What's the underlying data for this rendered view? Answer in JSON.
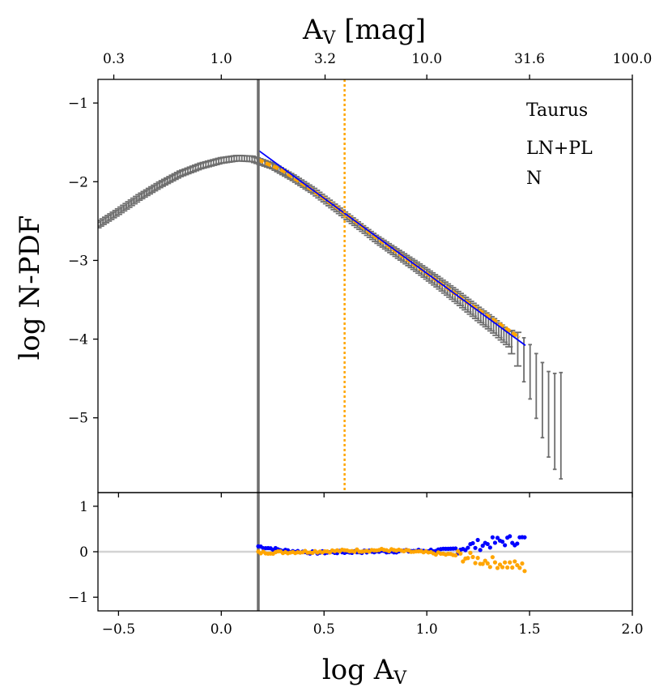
{
  "chart_data": {
    "type": "scatter",
    "title": "",
    "top_axis": {
      "label_main": "A",
      "label_sub": "V",
      "label_suffix": " [mag]",
      "ticks": [
        {
          "log": -0.523,
          "label": "0.3"
        },
        {
          "log": 0.0,
          "label": "1.0"
        },
        {
          "log": 0.505,
          "label": "3.2"
        },
        {
          "log": 1.0,
          "label": "10.0"
        },
        {
          "log": 1.5,
          "label": "31.6"
        },
        {
          "log": 2.0,
          "label": "100.0"
        }
      ]
    },
    "xlabel_main": "log A",
    "xlabel_sub": "V",
    "ylabel": "log N-PDF",
    "xlim": [
      -0.6,
      2.0
    ],
    "ylim_main": [
      -5.95,
      -0.7
    ],
    "ylim_resid": [
      -1.3,
      1.3
    ],
    "x_ticks": [
      {
        "value": -0.5,
        "label": "−0.5"
      },
      {
        "value": 0.0,
        "label": "0.0"
      },
      {
        "value": 0.5,
        "label": "0.5"
      },
      {
        "value": 1.0,
        "label": "1.0"
      },
      {
        "value": 1.5,
        "label": "1.5"
      },
      {
        "value": 2.0,
        "label": "2.0"
      }
    ],
    "y_ticks_main": [
      {
        "value": -1,
        "label": "−1"
      },
      {
        "value": -2,
        "label": "−2"
      },
      {
        "value": -3,
        "label": "−3"
      },
      {
        "value": -4,
        "label": "−4"
      },
      {
        "value": -5,
        "label": "−5"
      }
    ],
    "y_ticks_resid": [
      {
        "value": 1,
        "label": "1"
      },
      {
        "value": 0,
        "label": "0"
      },
      {
        "value": -1,
        "label": "−1"
      }
    ],
    "legend": [
      "Taurus",
      "LN+PL",
      "N"
    ],
    "vertical_lines": [
      {
        "x": 0.18,
        "style": "solid",
        "color": "#6e6e6e"
      },
      {
        "x": 0.6,
        "style": "dotted",
        "color": "#ffa500"
      }
    ],
    "pl_fit": {
      "x": [
        0.18,
        1.48
      ],
      "y": [
        -1.6,
        -4.08
      ],
      "color": "#0000ff"
    },
    "pdf_anchors": [
      [
        -0.6,
        -2.55
      ],
      [
        -0.5,
        -2.38
      ],
      [
        -0.4,
        -2.2
      ],
      [
        -0.3,
        -2.04
      ],
      [
        -0.2,
        -1.9
      ],
      [
        -0.1,
        -1.8
      ],
      [
        0.0,
        -1.73
      ],
      [
        0.08,
        -1.7
      ],
      [
        0.15,
        -1.71
      ],
      [
        0.25,
        -1.8
      ],
      [
        0.35,
        -1.95
      ],
      [
        0.45,
        -2.12
      ],
      [
        0.55,
        -2.32
      ],
      [
        0.65,
        -2.52
      ],
      [
        0.75,
        -2.72
      ],
      [
        0.85,
        -2.9
      ],
      [
        0.95,
        -3.08
      ],
      [
        1.05,
        -3.27
      ],
      [
        1.15,
        -3.47
      ],
      [
        1.25,
        -3.68
      ],
      [
        1.32,
        -3.82
      ],
      [
        1.4,
        -4.0
      ],
      [
        1.45,
        -4.15
      ],
      [
        1.5,
        -4.4
      ],
      [
        1.55,
        -4.7
      ],
      [
        1.6,
        -5.0
      ],
      [
        1.65,
        -5.1
      ]
    ],
    "model_anchors": [
      [
        0.18,
        -1.72
      ],
      [
        0.3,
        -1.86
      ],
      [
        0.45,
        -2.12
      ],
      [
        0.6,
        -2.4
      ],
      [
        0.75,
        -2.7
      ],
      [
        0.9,
        -2.98
      ],
      [
        1.05,
        -3.26
      ],
      [
        1.2,
        -3.54
      ],
      [
        1.35,
        -3.8
      ],
      [
        1.45,
        -3.98
      ]
    ],
    "residual_segments": [
      {
        "x0": 0.18,
        "x1": 1.48,
        "color": "#0000ff",
        "anchors": [
          [
            0.18,
            0.12
          ],
          [
            0.3,
            0.03
          ],
          [
            0.45,
            -0.02
          ],
          [
            0.7,
            0.0
          ],
          [
            0.95,
            0.02
          ],
          [
            1.1,
            0.04
          ],
          [
            1.25,
            0.15
          ],
          [
            1.35,
            0.22
          ],
          [
            1.48,
            0.28
          ]
        ]
      },
      {
        "x0": 0.18,
        "x1": 1.48,
        "color": "#ffa500",
        "anchors": [
          [
            0.18,
            -0.02
          ],
          [
            0.4,
            0.0
          ],
          [
            0.6,
            0.02
          ],
          [
            0.8,
            0.04
          ],
          [
            1.0,
            -0.02
          ],
          [
            1.15,
            -0.08
          ],
          [
            1.25,
            -0.18
          ],
          [
            1.35,
            -0.25
          ],
          [
            1.48,
            -0.35
          ]
        ]
      }
    ],
    "colors": {
      "data": "#6e6e6e",
      "model": "#ffa500",
      "fit": "#0000ff",
      "residual_blue": "#0000ff",
      "residual_orange": "#ffa500",
      "zero_line": "#d3d3d3",
      "axis": "#000000"
    }
  }
}
